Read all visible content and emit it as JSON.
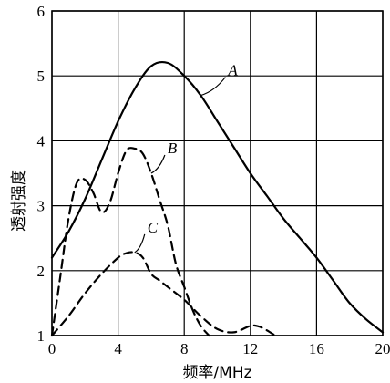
{
  "chart_data": {
    "type": "line",
    "xlabel": "频率/MHz",
    "ylabel": "透射强度",
    "xlim": [
      0,
      20
    ],
    "ylim": [
      1,
      6
    ],
    "x_ticks": [
      0,
      4,
      8,
      12,
      16,
      20
    ],
    "y_ticks": [
      1,
      2,
      3,
      4,
      5,
      6
    ],
    "x_tick_labels": [
      "0",
      "4",
      "8",
      "12",
      "16",
      "20"
    ],
    "y_tick_labels": [
      "1",
      "2",
      "3",
      "4",
      "5",
      "6"
    ],
    "grid": true,
    "series": [
      {
        "name": "A",
        "style": "solid",
        "x": [
          0,
          1,
          2,
          3,
          4,
          5,
          6,
          7,
          8,
          9,
          10,
          11,
          12,
          13,
          14,
          15,
          16,
          17,
          18,
          19,
          20
        ],
        "y": [
          2.2,
          2.6,
          3.1,
          3.7,
          4.3,
          4.8,
          5.15,
          5.2,
          5.0,
          4.7,
          4.3,
          3.9,
          3.5,
          3.15,
          2.8,
          2.5,
          2.2,
          1.85,
          1.5,
          1.25,
          1.05
        ]
      },
      {
        "name": "B",
        "style": "dashed",
        "x": [
          0,
          0.5,
          1.0,
          1.5,
          2.0,
          2.5,
          3.0,
          3.5,
          4.0,
          4.5,
          5.0,
          5.5,
          6.0,
          6.5,
          7.0,
          7.5,
          8.0,
          8.5,
          9.0,
          9.5
        ],
        "y": [
          1.0,
          1.9,
          2.8,
          3.35,
          3.4,
          3.2,
          2.9,
          3.05,
          3.5,
          3.85,
          3.88,
          3.8,
          3.5,
          3.1,
          2.7,
          2.1,
          1.75,
          1.4,
          1.15,
          1.0
        ]
      },
      {
        "name": "C",
        "style": "dashed",
        "x": [
          0,
          1,
          2,
          3,
          4,
          4.5,
          5.0,
          5.5,
          6.0,
          6.5,
          7.0,
          8.0,
          9.0,
          10.0,
          11.0,
          12.0,
          12.5,
          13.0,
          13.5
        ],
        "y": [
          1.0,
          1.3,
          1.65,
          1.95,
          2.2,
          2.27,
          2.28,
          2.2,
          1.95,
          1.85,
          1.75,
          1.55,
          1.3,
          1.1,
          1.05,
          1.15,
          1.14,
          1.08,
          1.0
        ]
      }
    ]
  }
}
